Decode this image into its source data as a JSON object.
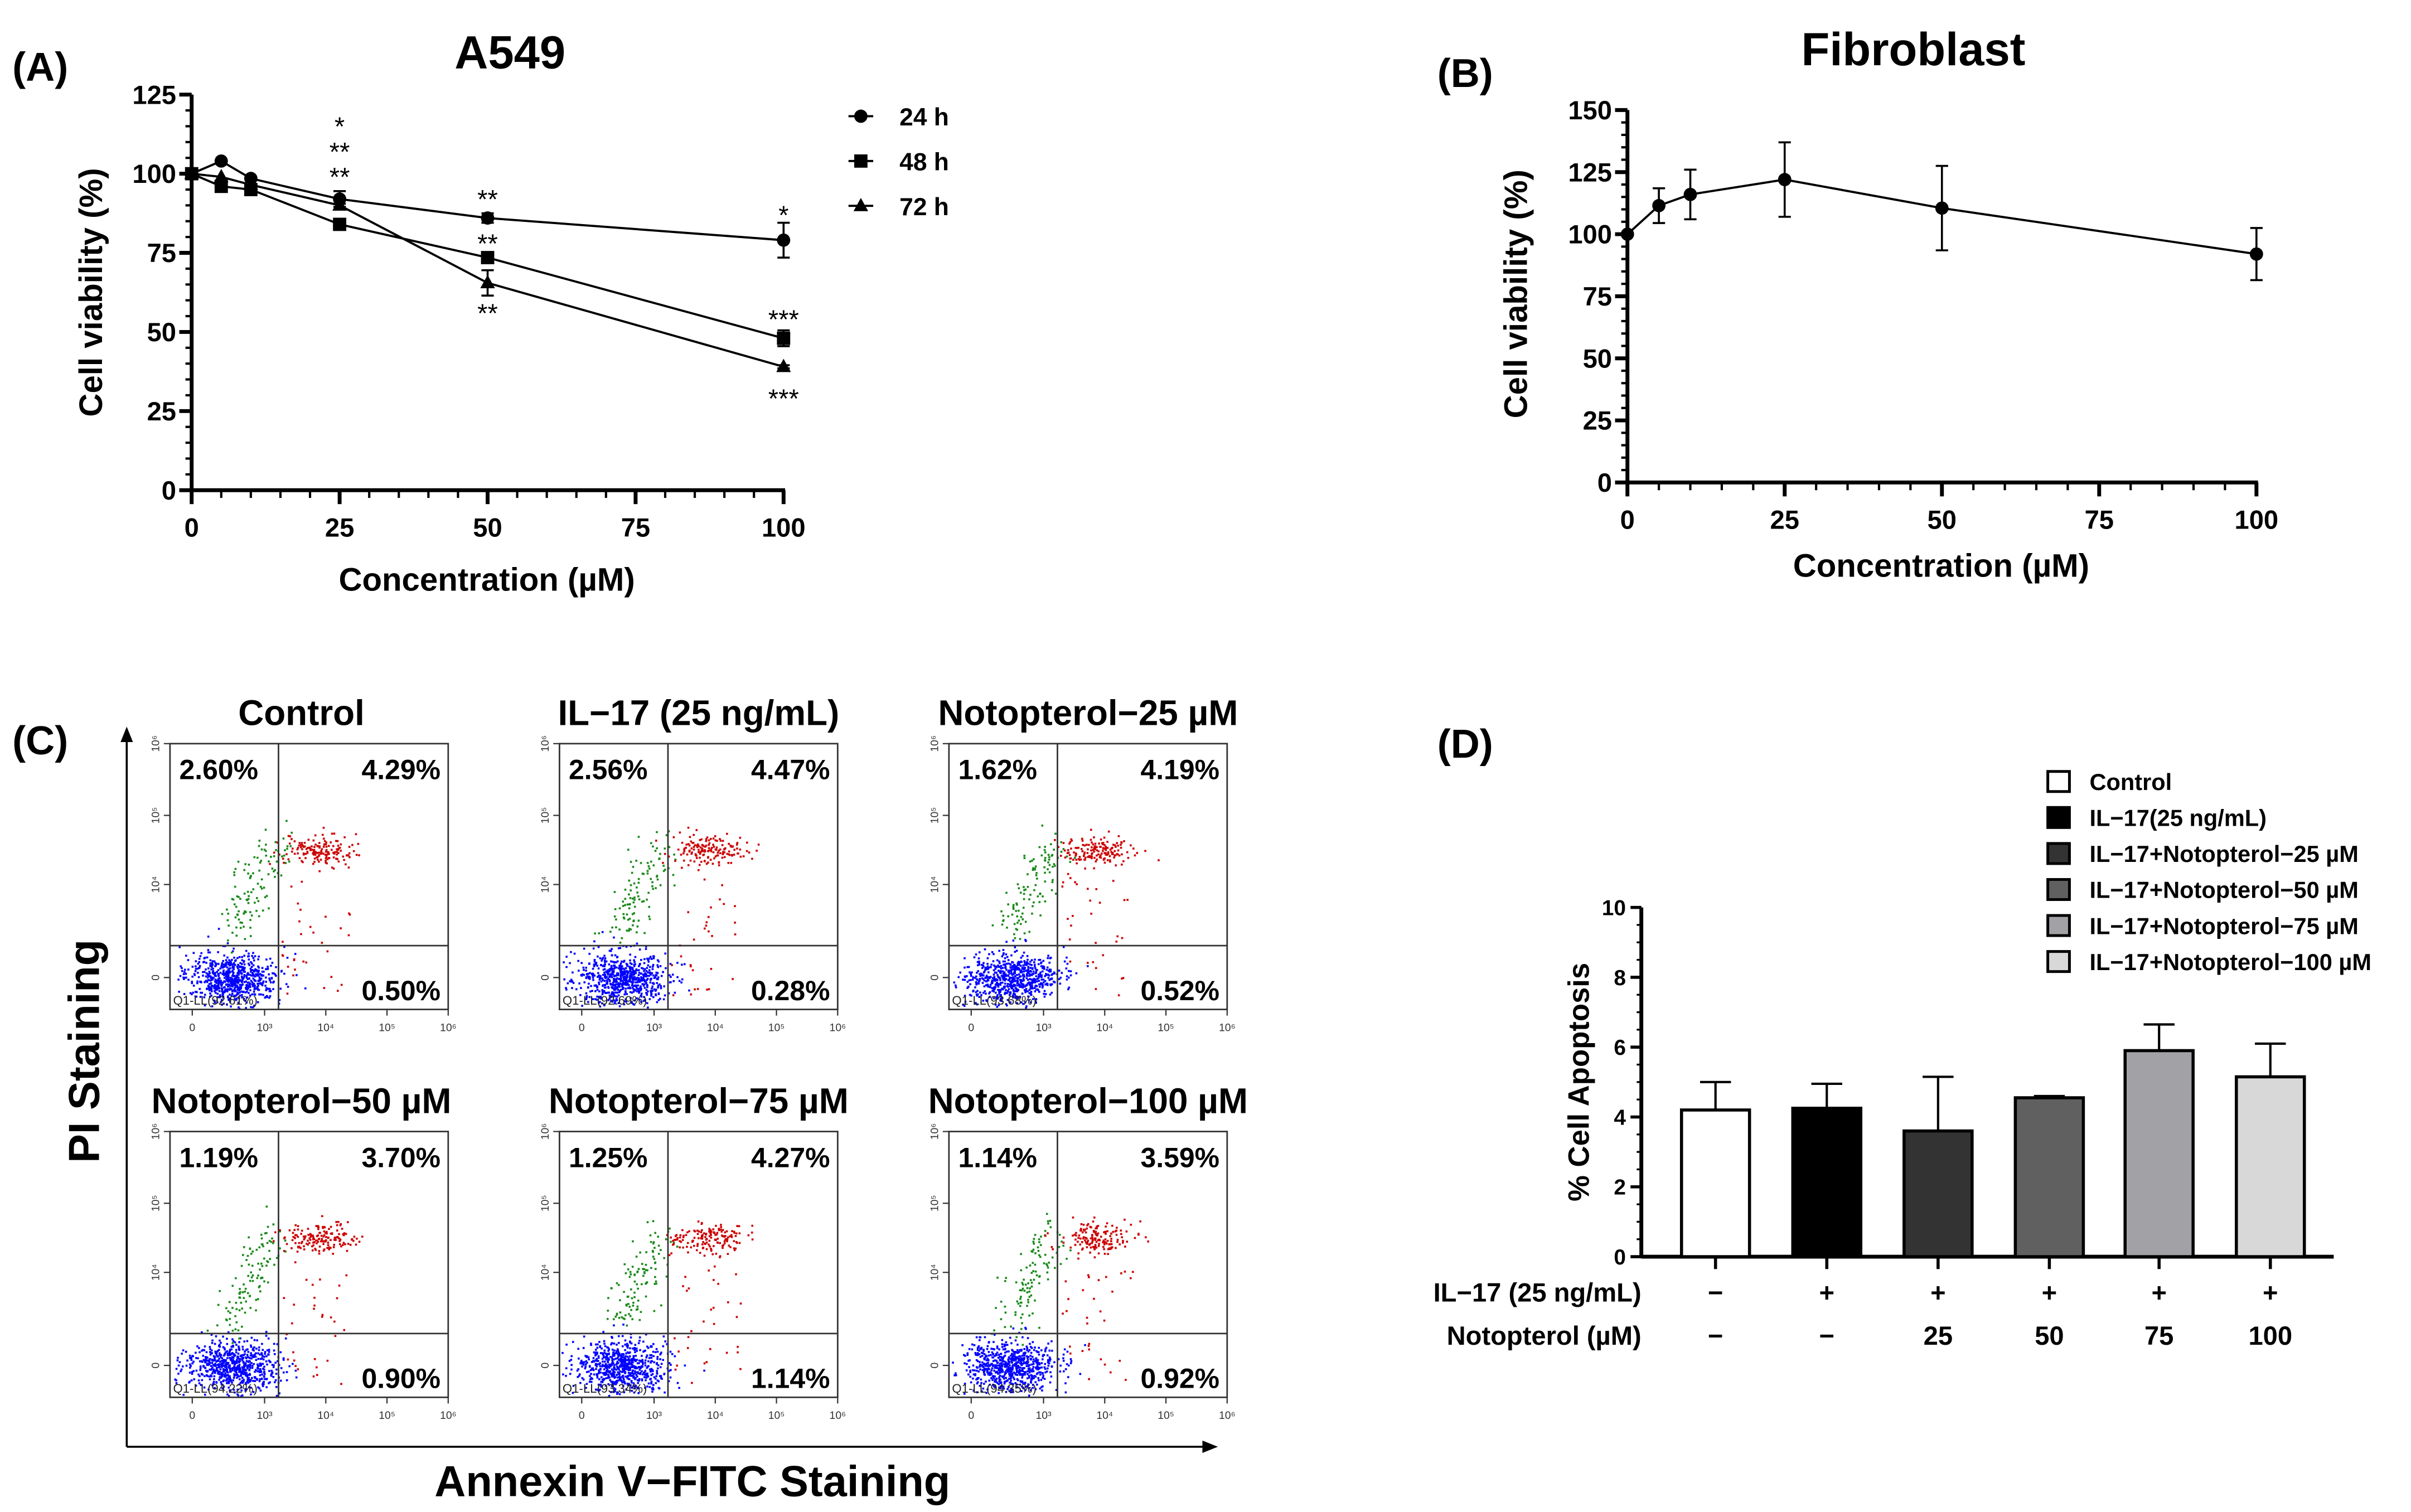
{
  "panels": {
    "a_label": "(A)",
    "b_label": "(B)",
    "c_label": "(C)",
    "d_label": "(D)"
  },
  "chart_data": [
    {
      "id": "A",
      "type": "line",
      "title": "A549",
      "xlabel": "Concentration (µM)",
      "ylabel": "Cell viability (%)",
      "xlim": [
        0,
        100
      ],
      "ylim": [
        0,
        125
      ],
      "xticks": [
        0,
        25,
        50,
        75,
        100
      ],
      "yticks": [
        0,
        25,
        50,
        75,
        100,
        125
      ],
      "x": [
        0,
        5,
        10,
        25,
        50,
        100
      ],
      "legend_position": "top-right",
      "series": [
        {
          "name": "24 h",
          "marker": "circle",
          "values": [
            100,
            104,
            98.5,
            92,
            86,
            79
          ],
          "errors": [
            0,
            0,
            0,
            2.5,
            1.5,
            5.5
          ]
        },
        {
          "name": "48 h",
          "marker": "square",
          "values": [
            100,
            96,
            95,
            84,
            73.5,
            48
          ],
          "errors": [
            0,
            0,
            0,
            0.5,
            1,
            2.5
          ]
        },
        {
          "name": "72 h",
          "marker": "triangle",
          "values": [
            100,
            99,
            96.5,
            90,
            65.5,
            39
          ],
          "errors": [
            0,
            0,
            0,
            0.5,
            4,
            0.5
          ]
        }
      ],
      "annotations": [
        {
          "x": 25,
          "y": 116,
          "text": "*"
        },
        {
          "x": 25,
          "y": 108,
          "text": "**"
        },
        {
          "x": 25,
          "y": 100,
          "text": "**"
        },
        {
          "x": 50,
          "y": 93,
          "text": "**"
        },
        {
          "x": 50,
          "y": 79,
          "text": "**"
        },
        {
          "x": 50,
          "y": 57,
          "text": "**"
        },
        {
          "x": 100,
          "y": 88,
          "text": "*"
        },
        {
          "x": 100,
          "y": 55,
          "text": "***"
        },
        {
          "x": 100,
          "y": 30,
          "text": "***"
        }
      ]
    },
    {
      "id": "B",
      "type": "line",
      "title": "Fibroblast",
      "xlabel": "Concentration (µM)",
      "ylabel": "Cell viability (%)",
      "xlim": [
        0,
        100
      ],
      "ylim": [
        0,
        150
      ],
      "xticks": [
        0,
        25,
        50,
        75,
        100
      ],
      "yticks": [
        0,
        25,
        50,
        75,
        100,
        125,
        150
      ],
      "x": [
        0,
        5,
        10,
        25,
        50,
        100
      ],
      "series": [
        {
          "name": "Fibroblast",
          "marker": "circle",
          "values": [
            100,
            111.5,
            116,
            122,
            110.5,
            92
          ],
          "errors": [
            0,
            7,
            10,
            15,
            17,
            10.5
          ]
        }
      ]
    },
    {
      "id": "C",
      "type": "scatter",
      "xlabel": "Annexin V−FITC Staining",
      "ylabel": "PI Staining",
      "x_tick_labels": [
        "0",
        "10³",
        "10⁴",
        "10⁵",
        "10⁶"
      ],
      "y_tick_labels": [
        "0",
        "10⁴",
        "10⁵",
        "10⁶"
      ],
      "plots": [
        {
          "title": "Control",
          "ul": "2.60%",
          "ur": "4.29%",
          "lr": "0.50%",
          "ll": "Q1-LL(92.61%)"
        },
        {
          "title": "IL−17 (25 ng/mL)",
          "ul": "2.56%",
          "ur": "4.47%",
          "lr": "0.28%",
          "ll": "Q1-LL(92.69%)"
        },
        {
          "title": "Notopterol−25 µM",
          "ul": "1.62%",
          "ur": "4.19%",
          "lr": "0.52%",
          "ll": "Q1-LL(93.68%)"
        },
        {
          "title": "Notopterol−50 µM",
          "ul": "1.19%",
          "ur": "3.70%",
          "lr": "0.90%",
          "ll": "Q1-LL(94.22%)"
        },
        {
          "title": "Notopterol−75 µM",
          "ul": "1.25%",
          "ur": "4.27%",
          "lr": "1.14%",
          "ll": "Q1-LL(93.34%)"
        },
        {
          "title": "Notopterol−100 µM",
          "ul": "1.14%",
          "ur": "3.59%",
          "lr": "0.92%",
          "ll": "Q1-LL(94.35%)"
        }
      ],
      "colors": {
        "live": "#0000ff",
        "early_apoptotic": "#cc0000",
        "necrotic": "#1a8a1a",
        "late_apoptotic": "#cc0000"
      }
    },
    {
      "id": "D",
      "type": "bar",
      "ylabel": "% Cell Apoptosis",
      "ylim": [
        0,
        10
      ],
      "yticks": [
        0,
        2,
        4,
        6,
        8,
        10
      ],
      "categories": [
        "Control",
        "IL−17(25 ng/mL)",
        "IL−17+Notopterol−25 µM",
        "IL−17+Notopterol−50 µM",
        "IL−17+Notopterol−75 µM",
        "IL−17+Notopterol−100 µM"
      ],
      "values": [
        4.2,
        4.25,
        3.6,
        4.55,
        5.9,
        5.15
      ],
      "errors": [
        0.8,
        0.7,
        1.55,
        0.05,
        0.75,
        0.95
      ],
      "colors": [
        "#ffffff",
        "#000000",
        "#333333",
        "#606060",
        "#a2a2a6",
        "#d8d8d8"
      ],
      "legend_position": "top-right",
      "row_labels": [
        "IL−17 (25 ng/mL)",
        "Notopterol (µM)"
      ],
      "row_il17": [
        "−",
        "+",
        "+",
        "+",
        "+",
        "+"
      ],
      "row_notopterol": [
        "−",
        "−",
        "25",
        "50",
        "75",
        "100"
      ]
    }
  ]
}
